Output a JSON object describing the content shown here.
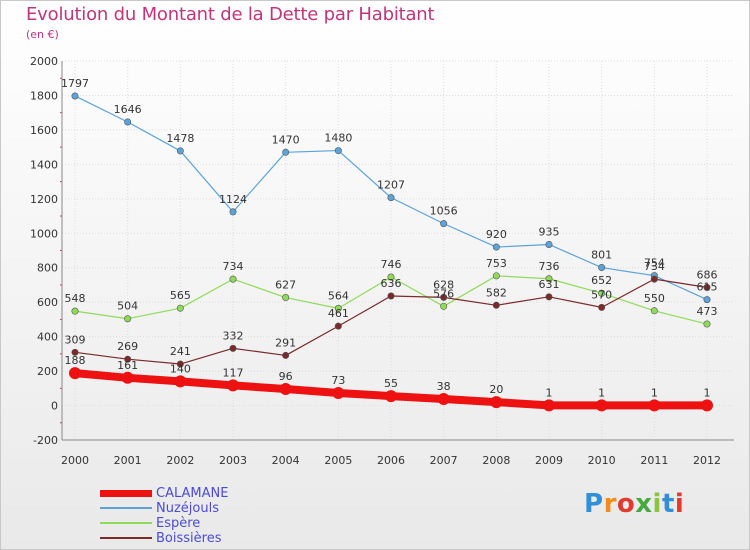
{
  "title": "Evolution du Montant de la Dette par Habitant",
  "subtitle": "(en €)",
  "logo_text": "Proxiti",
  "chart_data": {
    "type": "line",
    "x": [
      "2000",
      "2001",
      "2002",
      "2003",
      "2004",
      "2005",
      "2006",
      "2007",
      "2008",
      "2009",
      "2010",
      "2011",
      "2012"
    ],
    "ylim": [
      -200,
      2000
    ],
    "yticks": [
      "-200",
      "0",
      "200",
      "400",
      "600",
      "800",
      "1000",
      "1200",
      "1400",
      "1600",
      "1800",
      "2000"
    ],
    "grid": true,
    "legend_position": "bottom-left",
    "series": [
      {
        "name": "CALAMANE",
        "color": "#ee1111",
        "values": [
          188,
          161,
          140,
          117,
          96,
          73,
          55,
          38,
          20,
          1,
          1,
          1,
          1
        ]
      },
      {
        "name": "Nuzéjouls",
        "color": "#5ba3d9",
        "values": [
          1797,
          1646,
          1478,
          1124,
          1470,
          1480,
          1207,
          1056,
          920,
          935,
          801,
          754,
          615
        ]
      },
      {
        "name": "Espère",
        "color": "#8fdb59",
        "values": [
          548,
          504,
          565,
          734,
          627,
          564,
          746,
          576,
          753,
          736,
          652,
          550,
          473
        ]
      },
      {
        "name": "Boissières",
        "color": "#7a2a2a",
        "values": [
          309,
          269,
          241,
          332,
          291,
          461,
          636,
          628,
          582,
          631,
          570,
          734,
          686
        ]
      }
    ]
  }
}
